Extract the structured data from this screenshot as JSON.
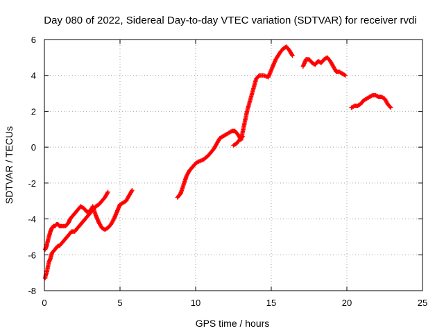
{
  "chart_data": {
    "type": "scatter",
    "title": "Day 080 of 2022, Sidereal Day-to-day VTEC variation (SDTVAR) for receiver rvdi",
    "xlabel": "GPS time / hours",
    "ylabel": "SDTVAR / TECUs",
    "xlim": [
      0,
      25
    ],
    "ylim": [
      -8,
      6
    ],
    "xticks": [
      "0",
      "5",
      "10",
      "15",
      "20",
      "25"
    ],
    "yticks": [
      "-8",
      "-6",
      "-4",
      "-2",
      "0",
      "2",
      "4",
      "6"
    ],
    "grid": true,
    "marker": "plus",
    "color": "#ff0000",
    "series": [
      {
        "x": [
          0.05,
          0.1,
          0.15,
          0.2,
          0.25,
          0.3,
          0.4,
          0.5,
          0.6,
          0.7,
          0.8,
          0.9,
          1.0,
          1.1,
          1.2,
          1.4,
          1.6,
          1.8,
          2.0,
          2.2,
          2.4,
          2.6,
          2.8,
          3.0,
          3.2,
          3.4,
          3.6,
          3.8,
          4.0,
          4.2
        ],
        "y": [
          -7.3,
          -7.1,
          -7.0,
          -6.8,
          -6.6,
          -6.4,
          -6.2,
          -5.9,
          -5.8,
          -5.7,
          -5.6,
          -5.5,
          -5.5,
          -5.4,
          -5.3,
          -5.1,
          -4.9,
          -4.7,
          -4.7,
          -4.5,
          -4.3,
          -4.1,
          -3.9,
          -3.7,
          -3.5,
          -3.3,
          -3.2,
          -3.0,
          -2.8,
          -2.5
        ]
      },
      {
        "x": [
          0.05,
          0.1,
          0.15,
          0.2,
          0.3,
          0.4,
          0.5,
          0.6,
          0.7,
          0.8,
          0.9,
          1.0,
          1.2,
          1.4,
          1.6,
          1.7,
          1.8,
          2.0,
          2.2,
          2.4,
          2.6,
          2.8,
          3.0,
          3.2,
          3.4,
          3.6,
          3.8,
          4.0,
          4.2,
          4.4,
          4.6,
          4.8,
          5.0,
          5.2,
          5.4,
          5.6,
          5.8
        ],
        "y": [
          -5.7,
          -5.6,
          -5.5,
          -5.3,
          -5.0,
          -4.7,
          -4.5,
          -4.4,
          -4.4,
          -4.3,
          -4.3,
          -4.4,
          -4.4,
          -4.4,
          -4.2,
          -4.0,
          -3.9,
          -3.7,
          -3.5,
          -3.3,
          -3.4,
          -3.6,
          -3.6,
          -3.3,
          -3.8,
          -4.2,
          -4.5,
          -4.6,
          -4.5,
          -4.3,
          -4.0,
          -3.6,
          -3.2,
          -3.1,
          -3.0,
          -2.7,
          -2.4
        ]
      },
      {
        "x": [
          8.8,
          9.0,
          9.2,
          9.4,
          9.6,
          9.8,
          10.0,
          10.2,
          10.5,
          10.8,
          11.0,
          11.2,
          11.4,
          11.6,
          11.8,
          12.0,
          12.2,
          12.4,
          12.6,
          12.8,
          13.0,
          13.2,
          13.4,
          13.6,
          13.8,
          14.0,
          14.2,
          14.5,
          14.8,
          15.0,
          15.3,
          15.6,
          15.8,
          16.0,
          16.2,
          16.4
        ],
        "y": [
          -2.8,
          -2.6,
          -2.1,
          -1.6,
          -1.3,
          -1.1,
          -0.9,
          -0.8,
          -0.7,
          -0.5,
          -0.3,
          -0.1,
          0.2,
          0.5,
          0.6,
          0.7,
          0.8,
          0.9,
          0.9,
          0.7,
          0.4,
          1.2,
          2.0,
          2.6,
          3.2,
          3.8,
          4.0,
          4.0,
          3.9,
          4.3,
          4.9,
          5.3,
          5.5,
          5.6,
          5.4,
          5.1
        ]
      },
      {
        "x": [
          12.5,
          12.7,
          12.9,
          13.1
        ],
        "y": [
          0.1,
          0.2,
          0.4,
          0.6
        ]
      },
      {
        "x": [
          17.1,
          17.3,
          17.5,
          17.7,
          17.9,
          18.1,
          18.3,
          18.5,
          18.7,
          18.9,
          19.1,
          19.3,
          19.5,
          19.7,
          19.9
        ],
        "y": [
          4.5,
          4.9,
          4.9,
          4.7,
          4.6,
          4.8,
          4.7,
          4.9,
          5.0,
          4.8,
          4.5,
          4.2,
          4.2,
          4.1,
          4.0
        ]
      },
      {
        "x": [
          20.3,
          20.5,
          20.7,
          20.9,
          21.1,
          21.3,
          21.5,
          21.7,
          21.9,
          22.1,
          22.3,
          22.5,
          22.7,
          22.9
        ],
        "y": [
          2.2,
          2.3,
          2.3,
          2.4,
          2.6,
          2.7,
          2.8,
          2.9,
          2.9,
          2.8,
          2.8,
          2.7,
          2.4,
          2.2
        ]
      }
    ]
  }
}
